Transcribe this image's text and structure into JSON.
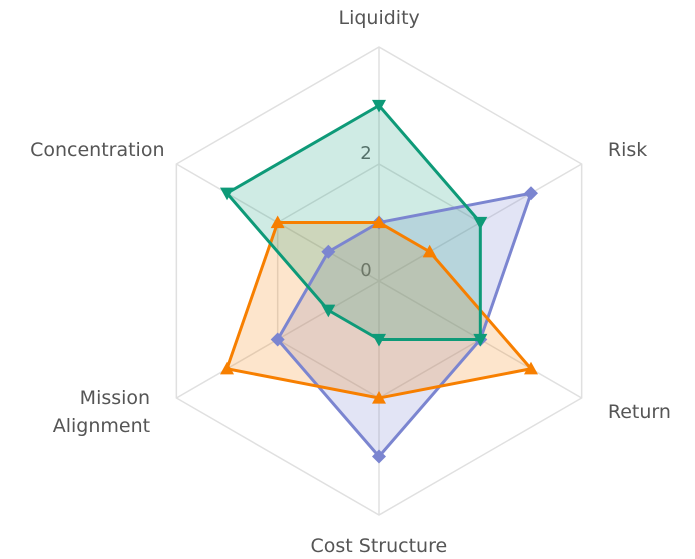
{
  "chart_data": {
    "type": "radar",
    "categories": [
      "Liquidity",
      "Risk",
      "Return",
      "Cost Structure",
      "Mission Alignment",
      "Concentration"
    ],
    "rlim": [
      0,
      4
    ],
    "rticks": [
      0,
      2
    ],
    "grid": true,
    "series": [
      {
        "color": "#7b85d0",
        "fill": "rgba(123,133,208,0.22)",
        "marker": "diamond",
        "values": [
          1,
          3,
          2,
          3,
          2,
          1
        ]
      },
      {
        "color": "#f77f00",
        "fill": "rgba(247,127,0,0.2)",
        "marker": "triangle-up",
        "values": [
          1,
          1,
          3,
          2,
          3,
          2
        ]
      },
      {
        "color": "#0e9a78",
        "fill": "rgba(14,154,120,0.2)",
        "marker": "triangle-down",
        "values": [
          3,
          2,
          2,
          1,
          1,
          3
        ]
      }
    ]
  }
}
